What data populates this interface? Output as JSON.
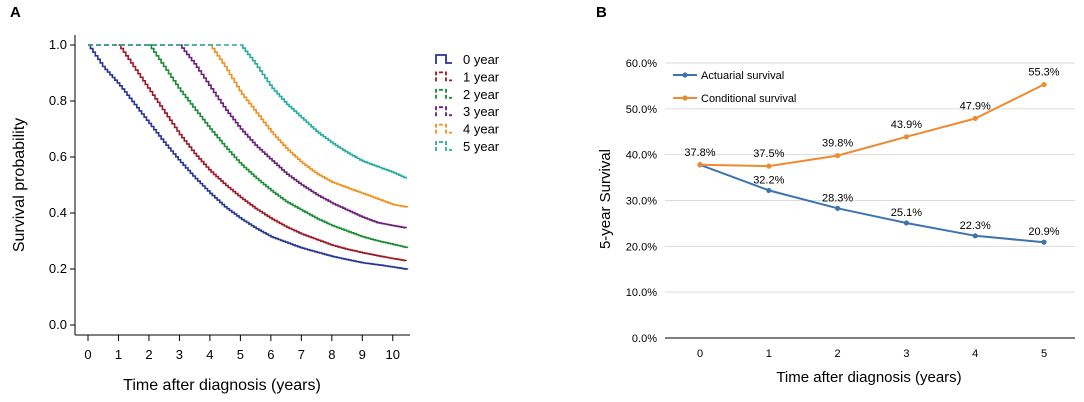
{
  "chart_data": [
    {
      "panel": "A",
      "type": "line",
      "title": "",
      "xlabel": "Time after diagnosis (years)",
      "ylabel": "Survival probability",
      "xlim": [
        0,
        10.5
      ],
      "ylim": [
        0,
        1.0
      ],
      "x_ticks": [
        "0",
        "1",
        "2",
        "3",
        "4",
        "5",
        "6",
        "7",
        "8",
        "9",
        "10"
      ],
      "y_ticks": [
        "0.0",
        "0.2",
        "0.4",
        "0.6",
        "0.8",
        "1.0"
      ],
      "legend_position": "right",
      "series": [
        {
          "name": "0 year",
          "color": "#27368f",
          "x": [
            0,
            0.5,
            1,
            1.5,
            2,
            2.5,
            3,
            3.5,
            4,
            4.5,
            5,
            5.5,
            6,
            6.5,
            7,
            7.5,
            8,
            8.5,
            9,
            9.5,
            10,
            10.5
          ],
          "values": [
            1.0,
            0.92,
            0.86,
            0.79,
            0.72,
            0.65,
            0.585,
            0.525,
            0.47,
            0.42,
            0.38,
            0.345,
            0.315,
            0.295,
            0.275,
            0.26,
            0.245,
            0.233,
            0.222,
            0.215,
            0.207,
            0.198
          ]
        },
        {
          "name": "1 year",
          "color": "#9b1b2a",
          "x": [
            1,
            1.5,
            2,
            2.5,
            3,
            3.5,
            4,
            4.5,
            5,
            5.5,
            6,
            6.5,
            7,
            7.5,
            8,
            8.5,
            9,
            9.5,
            10,
            10.5
          ],
          "values": [
            1.0,
            0.92,
            0.84,
            0.76,
            0.68,
            0.61,
            0.55,
            0.5,
            0.455,
            0.415,
            0.38,
            0.35,
            0.325,
            0.305,
            0.285,
            0.27,
            0.258,
            0.247,
            0.237,
            0.228
          ]
        },
        {
          "name": "2 year",
          "color": "#1d8c36",
          "x": [
            2,
            2.5,
            3,
            3.5,
            4,
            4.5,
            5,
            5.5,
            6,
            6.5,
            7,
            7.5,
            8,
            8.5,
            9,
            9.5,
            10,
            10.5
          ],
          "values": [
            1.0,
            0.92,
            0.84,
            0.77,
            0.7,
            0.635,
            0.575,
            0.525,
            0.48,
            0.44,
            0.41,
            0.38,
            0.355,
            0.335,
            0.315,
            0.3,
            0.288,
            0.275
          ]
        },
        {
          "name": "3 year",
          "color": "#6a2077",
          "x": [
            3,
            3.5,
            4,
            4.5,
            5,
            5.5,
            6,
            6.5,
            7,
            7.5,
            8,
            8.5,
            9,
            9.5,
            10,
            10.5
          ],
          "values": [
            1.0,
            0.93,
            0.85,
            0.77,
            0.7,
            0.64,
            0.59,
            0.54,
            0.5,
            0.465,
            0.435,
            0.41,
            0.385,
            0.365,
            0.355,
            0.345
          ]
        },
        {
          "name": "4 year",
          "color": "#f0901e",
          "x": [
            4,
            4.5,
            5,
            5.5,
            6,
            6.5,
            7,
            7.5,
            8,
            8.5,
            9,
            9.5,
            10,
            10.5
          ],
          "values": [
            1.0,
            0.92,
            0.83,
            0.76,
            0.69,
            0.63,
            0.58,
            0.54,
            0.51,
            0.49,
            0.47,
            0.45,
            0.43,
            0.42
          ]
        },
        {
          "name": "5 year",
          "color": "#27aca2",
          "x": [
            5,
            5.5,
            6,
            6.5,
            7,
            7.5,
            8,
            8.5,
            9,
            9.5,
            10,
            10.5
          ],
          "values": [
            1.0,
            0.93,
            0.85,
            0.79,
            0.74,
            0.69,
            0.65,
            0.615,
            0.585,
            0.565,
            0.545,
            0.52
          ]
        }
      ]
    },
    {
      "panel": "B",
      "type": "line",
      "title": "",
      "xlabel": "Time after diagnosis (years)",
      "ylabel": "5-year Survival",
      "ylim": [
        0,
        60
      ],
      "categories": [
        "0",
        "1",
        "2",
        "3",
        "4",
        "5"
      ],
      "y_ticks": [
        "0.0%",
        "10.0%",
        "20.0%",
        "30.0%",
        "40.0%",
        "50.0%",
        "60.0%"
      ],
      "legend_position": "top-left",
      "series": [
        {
          "name": "Actuarial survival",
          "color": "#3e74ad",
          "values": [
            37.8,
            32.2,
            28.3,
            25.1,
            22.3,
            20.9
          ],
          "labels": [
            "",
            "32.2%",
            "28.3%",
            "25.1%",
            "22.3%",
            "20.9%"
          ]
        },
        {
          "name": "Conditional survival",
          "color": "#ef8a33",
          "values": [
            37.8,
            37.5,
            39.8,
            43.9,
            47.9,
            55.3
          ],
          "labels": [
            "37.8%",
            "37.5%",
            "39.8%",
            "43.9%",
            "47.9%",
            "55.3%"
          ]
        }
      ]
    }
  ],
  "panels": {
    "a_letter": "A",
    "b_letter": "B"
  }
}
